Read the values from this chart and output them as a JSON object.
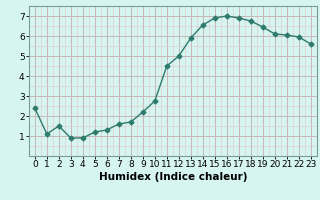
{
  "x": [
    0,
    1,
    2,
    3,
    4,
    5,
    6,
    7,
    8,
    9,
    10,
    11,
    12,
    13,
    14,
    15,
    16,
    17,
    18,
    19,
    20,
    21,
    22,
    23
  ],
  "y": [
    2.4,
    1.1,
    1.5,
    0.9,
    0.9,
    1.2,
    1.3,
    1.6,
    1.7,
    2.2,
    2.75,
    4.5,
    5.0,
    5.9,
    6.55,
    6.9,
    7.0,
    6.9,
    6.75,
    6.45,
    6.1,
    6.05,
    5.95,
    5.6
  ],
  "line_color": "#2e7b6e",
  "marker": "D",
  "marker_size": 2.5,
  "bg_color": "#d6f5f0",
  "grid_major_color": "#c8b8b8",
  "grid_minor_color": "#e0d0d0",
  "xlabel": "Humidex (Indice chaleur)",
  "xlim": [
    -0.5,
    23.5
  ],
  "ylim": [
    0,
    7.5
  ],
  "yticks": [
    1,
    2,
    3,
    4,
    5,
    6,
    7
  ],
  "xticks": [
    0,
    1,
    2,
    3,
    4,
    5,
    6,
    7,
    8,
    9,
    10,
    11,
    12,
    13,
    14,
    15,
    16,
    17,
    18,
    19,
    20,
    21,
    22,
    23
  ],
  "tick_label_size": 6.5,
  "xlabel_size": 7.5,
  "line_width": 1.0,
  "spine_color": "#7a9a9a"
}
